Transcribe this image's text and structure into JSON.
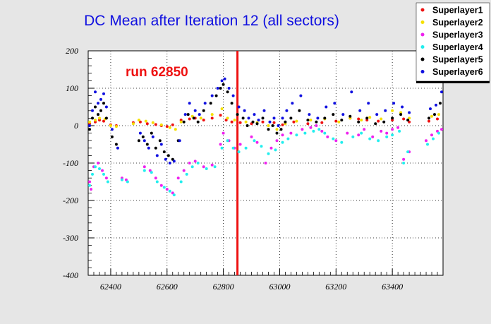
{
  "chart_data": {
    "type": "scatter",
    "title": "DC Mean after Iteration 12 (all sectors)",
    "annotation": "run 62850",
    "marker_run": 62850,
    "xlim": [
      62320,
      63580
    ],
    "ylim": [
      -400,
      200
    ],
    "x_ticks": [
      62400,
      62600,
      62800,
      63000,
      63200,
      63400
    ],
    "y_ticks": [
      200,
      100,
      0,
      -100,
      -200,
      -300,
      -400
    ],
    "grid": true,
    "legend_position": "top-right",
    "colors": {
      "title": "#1010e0",
      "annotation": "#ee1111",
      "marker_line": "#ee1111",
      "background": "#e6e6e6",
      "legend_bg": "#ffffff"
    },
    "series": [
      {
        "name": "Superlayer1",
        "color": "#ee1111",
        "x": [
          62325,
          62345,
          62360,
          62375,
          62400,
          62420,
          62480,
          62505,
          62530,
          62560,
          62580,
          62600,
          62620,
          62650,
          62680,
          62700,
          62730,
          62760,
          62790,
          62810,
          62830,
          62860,
          62900,
          62940,
          62980,
          63010,
          63050,
          63100,
          63150,
          63200,
          63250,
          63280,
          63310,
          63350,
          63400,
          63440,
          63460,
          63530,
          63560
        ],
        "values": [
          5,
          10,
          15,
          12,
          2,
          0,
          8,
          10,
          5,
          3,
          0,
          -2,
          2,
          15,
          18,
          20,
          15,
          20,
          28,
          15,
          10,
          8,
          5,
          10,
          8,
          2,
          10,
          5,
          8,
          12,
          20,
          18,
          15,
          12,
          15,
          18,
          10,
          12,
          18
        ]
      },
      {
        "name": "Superlayer2",
        "color": "#f5e000",
        "x": [
          62325,
          62345,
          62360,
          62380,
          62400,
          62420,
          62480,
          62500,
          62525,
          62550,
          62580,
          62610,
          62630,
          62650,
          62690,
          62720,
          62760,
          62795,
          62815,
          62840,
          62880,
          62920,
          62960,
          62990,
          63020,
          63060,
          63110,
          63160,
          63210,
          63250,
          63290,
          63320,
          63360,
          63400,
          63430,
          63460,
          63540,
          63565
        ],
        "values": [
          10,
          15,
          20,
          18,
          0,
          -2,
          5,
          15,
          12,
          8,
          2,
          -5,
          -10,
          10,
          25,
          20,
          30,
          45,
          20,
          15,
          10,
          8,
          0,
          -10,
          5,
          12,
          15,
          18,
          10,
          20,
          15,
          22,
          18,
          40,
          35,
          20,
          25,
          30
        ]
      },
      {
        "name": "Superlayer3",
        "color": "#ee22ee",
        "x": [
          62325,
          62330,
          62340,
          62355,
          62370,
          62385,
          62440,
          62455,
          62520,
          62540,
          62560,
          62580,
          62600,
          62620,
          62640,
          62660,
          62680,
          62700,
          62730,
          62760,
          62790,
          62800,
          62820,
          62840,
          62860,
          62900,
          62920,
          62950,
          62970,
          62990,
          63010,
          63040,
          63080,
          63110,
          63130,
          63150,
          63170,
          63200,
          63240,
          63280,
          63300,
          63330,
          63360,
          63380,
          63400,
          63420,
          63440,
          63460,
          63520,
          63540,
          63560,
          63575
        ],
        "values": [
          -150,
          -170,
          -110,
          -100,
          -120,
          -140,
          -140,
          -145,
          -110,
          -120,
          -140,
          -160,
          -170,
          -180,
          -140,
          -120,
          -100,
          -95,
          -110,
          -105,
          -50,
          -20,
          -40,
          -60,
          -50,
          -30,
          -45,
          -100,
          -60,
          -40,
          -25,
          -20,
          -10,
          -5,
          0,
          -15,
          -30,
          -40,
          -20,
          -25,
          -10,
          -30,
          -15,
          -20,
          -10,
          -5,
          -90,
          -70,
          -40,
          -25,
          -15,
          -10
        ]
      },
      {
        "name": "Superlayer4",
        "color": "#22eeee",
        "x": [
          62325,
          62335,
          62345,
          62360,
          62375,
          62390,
          62440,
          62460,
          62520,
          62545,
          62565,
          62590,
          62610,
          62625,
          62650,
          62670,
          62690,
          62710,
          62740,
          62770,
          62795,
          62815,
          62835,
          62855,
          62880,
          62910,
          62935,
          62960,
          62985,
          63010,
          63030,
          63060,
          63090,
          63120,
          63140,
          63160,
          63190,
          63220,
          63260,
          63290,
          63320,
          63350,
          63380,
          63400,
          63425,
          63440,
          63455,
          63525,
          63545,
          63565
        ],
        "values": [
          -160,
          -130,
          -110,
          -115,
          -130,
          -150,
          -145,
          -150,
          -120,
          -125,
          -150,
          -165,
          -175,
          -185,
          -150,
          -130,
          -110,
          -100,
          -115,
          -110,
          -60,
          -40,
          -60,
          -70,
          -60,
          -40,
          -55,
          -75,
          -65,
          -45,
          -35,
          -25,
          -20,
          -15,
          -10,
          -20,
          -35,
          -45,
          -30,
          -20,
          -35,
          -40,
          -30,
          -25,
          -15,
          -100,
          -70,
          -50,
          -35,
          -20
        ]
      },
      {
        "name": "Superlayer5",
        "color": "#000000",
        "x": [
          62325,
          62335,
          62345,
          62355,
          62365,
          62375,
          62385,
          62405,
          62420,
          62500,
          62515,
          62530,
          62545,
          62560,
          62575,
          62590,
          62605,
          62620,
          62640,
          62660,
          62675,
          62695,
          62710,
          62730,
          62755,
          62775,
          62790,
          62800,
          62815,
          62830,
          62850,
          62870,
          62885,
          62905,
          62920,
          62940,
          62960,
          62975,
          62990,
          63005,
          63020,
          63040,
          63070,
          63100,
          63130,
          63160,
          63190,
          63220,
          63250,
          63280,
          63310,
          63340,
          63370,
          63400,
          63430,
          63455,
          63530,
          63550,
          63570
        ],
        "values": [
          -10,
          20,
          50,
          30,
          40,
          60,
          20,
          -30,
          -50,
          -40,
          -30,
          -50,
          -20,
          -60,
          -40,
          -70,
          -80,
          -90,
          -40,
          10,
          30,
          20,
          10,
          40,
          60,
          80,
          100,
          110,
          90,
          60,
          30,
          20,
          0,
          10,
          5,
          20,
          -10,
          0,
          -20,
          -10,
          10,
          20,
          40,
          15,
          10,
          20,
          30,
          15,
          25,
          10,
          20,
          5,
          10,
          20,
          30,
          15,
          20,
          30,
          60
        ]
      },
      {
        "name": "Superlayer6",
        "color": "#1010e0",
        "x": [
          62325,
          62335,
          62345,
          62355,
          62365,
          62375,
          62385,
          62405,
          62425,
          62505,
          62520,
          62535,
          62550,
          62565,
          62580,
          62595,
          62610,
          62625,
          62645,
          62665,
          62680,
          62700,
          62715,
          62735,
          62760,
          62780,
          62795,
          62805,
          62820,
          62835,
          62855,
          62875,
          62890,
          62910,
          62925,
          62945,
          62965,
          62980,
          62995,
          63010,
          63025,
          63045,
          63075,
          63105,
          63135,
          63165,
          63195,
          63225,
          63255,
          63285,
          63315,
          63345,
          63375,
          63405,
          63435,
          63460,
          63535,
          63555,
          63575
        ],
        "values": [
          0,
          40,
          90,
          60,
          70,
          85,
          50,
          -10,
          -60,
          -20,
          -40,
          -60,
          -30,
          -80,
          -50,
          -90,
          -100,
          -95,
          -40,
          30,
          60,
          40,
          30,
          60,
          80,
          100,
          120,
          125,
          100,
          80,
          50,
          40,
          20,
          30,
          15,
          40,
          10,
          20,
          0,
          20,
          40,
          60,
          80,
          30,
          20,
          50,
          60,
          30,
          90,
          40,
          60,
          30,
          40,
          60,
          50,
          35,
          45,
          55,
          90
        ]
      }
    ]
  }
}
